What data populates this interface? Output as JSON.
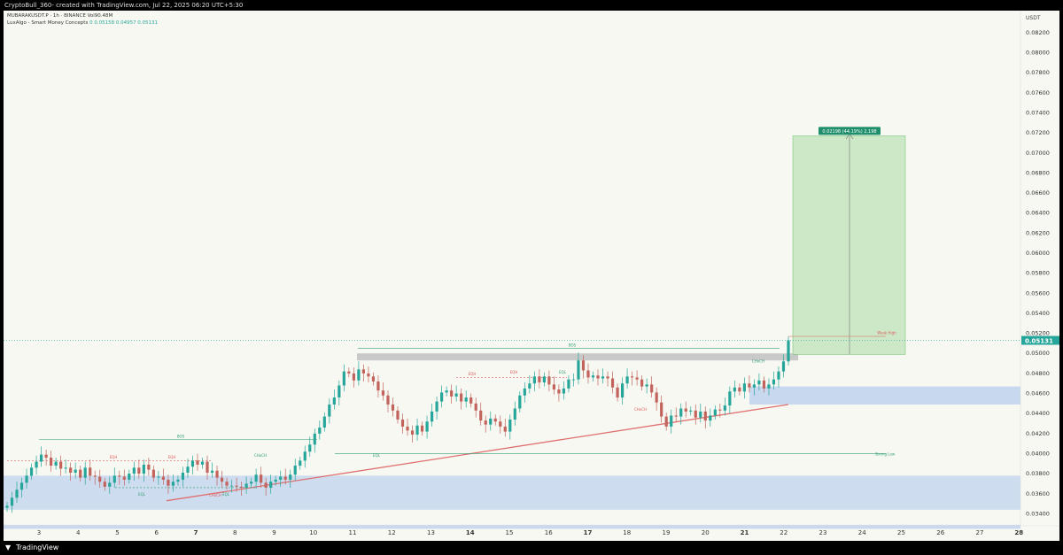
{
  "header": {
    "caption": "CryptoBull_360- created with TradingView.com, Jul 22, 2025 06:20 UTC+5:30"
  },
  "legend": {
    "symbol_line": "MUBARAKUSDT.P · 1h · BINANCE  Vol90.48M",
    "indicator_name": "LuxAlgo - Smart Money Concepts",
    "indicator_values": "0  0.05158  0.04957  0.05131"
  },
  "footer": {
    "brand": "TradingView"
  },
  "chart_data": {
    "type": "candlestick",
    "ylabel": "USDT",
    "ylim": [
      0.0328,
      0.0842
    ],
    "y_ticks": [
      "0.03400",
      "0.03600",
      "0.03800",
      "0.04000",
      "0.04200",
      "0.04400",
      "0.04600",
      "0.04800",
      "0.05000",
      "0.05200",
      "0.05400",
      "0.05600",
      "0.05800",
      "0.06000",
      "0.06200",
      "0.06400",
      "0.06600",
      "0.06800",
      "0.07000",
      "0.07200",
      "0.07400",
      "0.07600",
      "0.07800",
      "0.08000",
      "0.08200"
    ],
    "x_ticks": [
      "3",
      "4",
      "5",
      "6",
      "7",
      "8",
      "9",
      "10",
      "11",
      "12",
      "13",
      "14",
      "15",
      "16",
      "17",
      "18",
      "19",
      "20",
      "21",
      "22",
      "23",
      "24",
      "25",
      "26",
      "27",
      "28"
    ],
    "last_price": "0.05131",
    "up_color": "#26a69a",
    "down_color": "#c2635c",
    "candles_closes": [
      0.0348,
      0.0356,
      0.0364,
      0.0371,
      0.0378,
      0.0386,
      0.0392,
      0.0399,
      0.0396,
      0.0388,
      0.0392,
      0.0385,
      0.0386,
      0.0381,
      0.0384,
      0.0376,
      0.0386,
      0.0378,
      0.0377,
      0.0372,
      0.0367,
      0.0371,
      0.0378,
      0.0377,
      0.0374,
      0.038,
      0.0386,
      0.038,
      0.0389,
      0.0384,
      0.0376,
      0.0377,
      0.0374,
      0.0368,
      0.0372,
      0.0374,
      0.0381,
      0.0387,
      0.0393,
      0.0389,
      0.0392,
      0.0381,
      0.0383,
      0.0376,
      0.0372,
      0.0368,
      0.0368,
      0.0367,
      0.0366,
      0.037,
      0.0372,
      0.0379,
      0.0371,
      0.0366,
      0.0372,
      0.0374,
      0.0377,
      0.0374,
      0.0379,
      0.0388,
      0.0393,
      0.0402,
      0.0409,
      0.042,
      0.0426,
      0.0437,
      0.0449,
      0.0456,
      0.0468,
      0.0482,
      0.048,
      0.0473,
      0.0484,
      0.048,
      0.0477,
      0.0472,
      0.0463,
      0.0458,
      0.0449,
      0.0443,
      0.0434,
      0.0427,
      0.0423,
      0.0419,
      0.0428,
      0.0422,
      0.0432,
      0.0442,
      0.0452,
      0.0461,
      0.0463,
      0.0457,
      0.046,
      0.0452,
      0.0456,
      0.045,
      0.0443,
      0.0433,
      0.0429,
      0.0435,
      0.0432,
      0.0427,
      0.0422,
      0.0434,
      0.0445,
      0.0458,
      0.0465,
      0.047,
      0.0477,
      0.0471,
      0.0477,
      0.0469,
      0.0464,
      0.046,
      0.0465,
      0.0474,
      0.0474,
      0.0493,
      0.0483,
      0.0476,
      0.0478,
      0.0475,
      0.0477,
      0.0475,
      0.0466,
      0.0456,
      0.047,
      0.0477,
      0.0476,
      0.0474,
      0.0467,
      0.0469,
      0.0461,
      0.0451,
      0.0437,
      0.0427,
      0.0438,
      0.0437,
      0.0445,
      0.0442,
      0.0443,
      0.0436,
      0.0442,
      0.0433,
      0.0438,
      0.0444,
      0.0443,
      0.0448,
      0.0462,
      0.0466,
      0.0462,
      0.047,
      0.0466,
      0.0469,
      0.0473,
      0.0465,
      0.0469,
      0.0474,
      0.0482,
      0.0492,
      0.0513
    ],
    "annotations": {
      "measure_label": "0.02198 (44.19%) 2,198",
      "bos_label": "BOS",
      "choch_label": "CHoCH",
      "eqh_label": "EQH",
      "eql_label": "EQL",
      "strong_low": "Strong Low",
      "weak_high": "Weak High"
    }
  }
}
